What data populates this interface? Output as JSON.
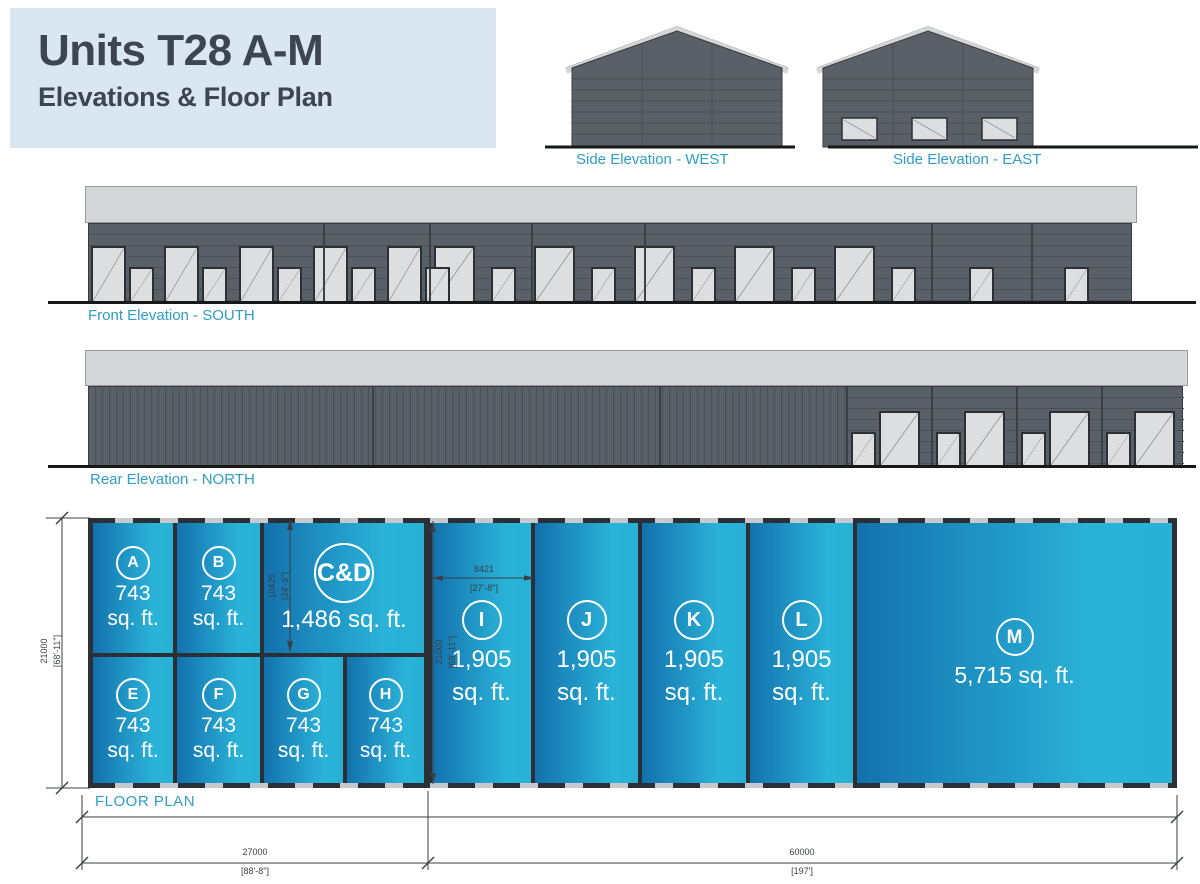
{
  "title": {
    "main": "Units T28 A-M",
    "sub": "Elevations & Floor Plan"
  },
  "elevation_labels": {
    "west": "Side Elevation - WEST",
    "east": "Side Elevation - EAST",
    "front": "Front Elevation - SOUTH",
    "rear": "Rear Elevation - NORTH"
  },
  "floor_plan": {
    "label": "FLOOR PLAN",
    "units": [
      {
        "id": "A",
        "area_lines": [
          "743",
          "sq. ft."
        ]
      },
      {
        "id": "B",
        "area_lines": [
          "743",
          "sq. ft."
        ]
      },
      {
        "id": "C&D",
        "area_lines": [
          "1,486 sq. ft."
        ]
      },
      {
        "id": "E",
        "area_lines": [
          "743",
          "sq. ft."
        ]
      },
      {
        "id": "F",
        "area_lines": [
          "743",
          "sq. ft."
        ]
      },
      {
        "id": "G",
        "area_lines": [
          "743",
          "sq. ft."
        ]
      },
      {
        "id": "H",
        "area_lines": [
          "743",
          "sq. ft."
        ]
      },
      {
        "id": "I",
        "area_lines": [
          "1,905",
          "sq. ft."
        ]
      },
      {
        "id": "J",
        "area_lines": [
          "1,905",
          "sq. ft."
        ]
      },
      {
        "id": "K",
        "area_lines": [
          "1,905",
          "sq. ft."
        ]
      },
      {
        "id": "L",
        "area_lines": [
          "1,905",
          "sq. ft."
        ]
      },
      {
        "id": "M",
        "area_lines": [
          "5,715 sq. ft."
        ]
      }
    ],
    "dimensions": {
      "overall_depth_mm": "21000",
      "overall_depth_ft": "[68'-11\"]",
      "cd_depth_mm": "10425",
      "cd_depth_ft": "[34'-3\"]",
      "unit_i_width_mm": "8421",
      "unit_i_width_ft": "[27'-8\"]",
      "unit_i_depth_mm": "21000",
      "unit_i_depth_ft": "[68'-11\"]",
      "left_block_width_mm": "27000",
      "left_block_width_ft": "[88'-8\"]",
      "right_block_width_mm": "60000",
      "right_block_width_ft": "[197']"
    }
  },
  "colors": {
    "label_accent": "#2f9dc6",
    "dimension": "#3b3e42",
    "plan_wall": "#2b3036",
    "unit_gradient_start": "#1371ad",
    "unit_gradient_end": "#2ab3d8",
    "elevation_wall": "#596067",
    "fascia": "#d4d6d8",
    "title_bg": "#dae6f2",
    "title_text": "#3c4550"
  }
}
